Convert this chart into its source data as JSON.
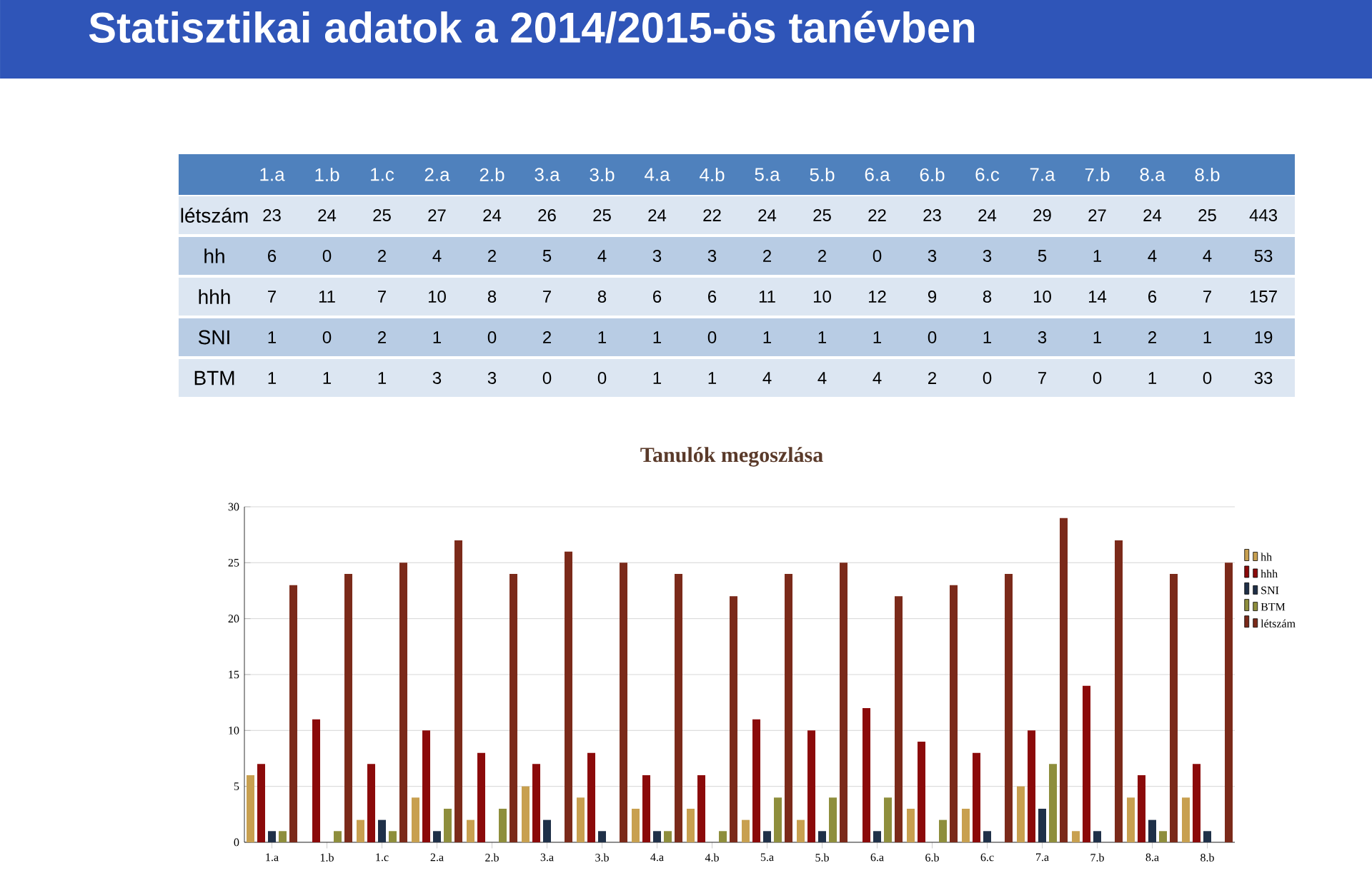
{
  "chart_data": {
    "type": "bar",
    "title": "Statisztikai adatok a 2014/2015-ös tanévben",
    "subtitle": "Tanulók megoszlása",
    "categories": [
      "1.a",
      "1.b",
      "1.c",
      "2.a",
      "2.b",
      "3.a",
      "3.b",
      "4.a",
      "4.b",
      "5.a",
      "5.b",
      "6.a",
      "6.b",
      "6.c",
      "7.a",
      "7.b",
      "8.a",
      "8.b"
    ],
    "series": [
      {
        "name": "hh",
        "color": "#c8a050",
        "values": [
          6,
          0,
          2,
          4,
          2,
          5,
          4,
          3,
          3,
          2,
          2,
          0,
          3,
          3,
          5,
          1,
          4,
          4
        ]
      },
      {
        "name": "hhh",
        "color": "#8b0a0a",
        "values": [
          7,
          11,
          7,
          10,
          8,
          7,
          8,
          6,
          6,
          11,
          10,
          12,
          9,
          8,
          10,
          14,
          6,
          7
        ]
      },
      {
        "name": "SNI",
        "color": "#1f3048",
        "values": [
          1,
          0,
          2,
          1,
          0,
          2,
          1,
          1,
          0,
          1,
          1,
          1,
          0,
          1,
          3,
          1,
          2,
          1
        ]
      },
      {
        "name": "BTM",
        "color": "#8e8e3c",
        "values": [
          1,
          1,
          1,
          3,
          3,
          0,
          0,
          1,
          1,
          4,
          4,
          4,
          2,
          0,
          7,
          0,
          1,
          0
        ]
      },
      {
        "name": "létszám",
        "color": "#7b2a1a",
        "values": [
          23,
          24,
          25,
          27,
          24,
          26,
          25,
          24,
          22,
          24,
          25,
          22,
          23,
          24,
          29,
          27,
          24,
          25
        ]
      }
    ],
    "annotations": [
      "443",
      "53",
      "157",
      "19",
      "33"
    ],
    "ylim": [
      0,
      30
    ],
    "yticks": [
      0,
      5,
      10,
      15,
      20,
      25,
      30
    ],
    "grid": "y",
    "legend": "right",
    "data_labels": true
  }
}
